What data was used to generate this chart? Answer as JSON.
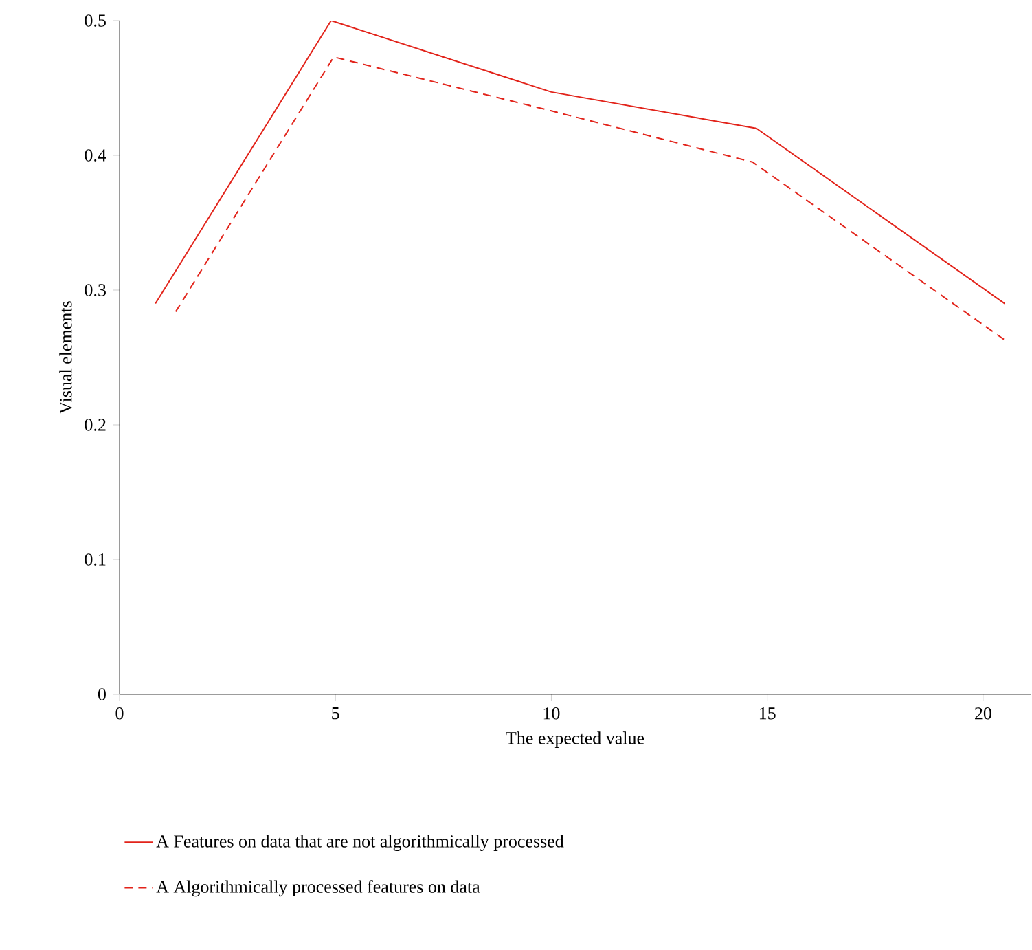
{
  "chart_data": {
    "type": "line",
    "xlabel": "The expected value",
    "ylabel": "Visual elements",
    "xlim": [
      0,
      21.1
    ],
    "ylim": [
      0,
      0.5
    ],
    "xticks": [
      0,
      5,
      10,
      15,
      20
    ],
    "yticks": [
      0,
      0.1,
      0.2,
      0.3,
      0.4,
      0.5
    ],
    "legend": "bottom",
    "marker": "none",
    "series": [
      {
        "name": "A Features on data that are not algorithmically processed",
        "color": "#e2231a",
        "line_style": "solid",
        "x": [
          0.83,
          4.9,
          10,
          14.75,
          20.5
        ],
        "values": [
          0.29,
          0.5,
          0.447,
          0.42,
          0.29
        ]
      },
      {
        "name": "A Algorithmically processed features on data",
        "color": "#e2231a",
        "line_style": "dashed",
        "x": [
          1.3,
          4.96,
          10,
          14.66,
          20.5
        ],
        "values": [
          0.284,
          0.473,
          0.433,
          0.395,
          0.263
        ]
      }
    ]
  }
}
